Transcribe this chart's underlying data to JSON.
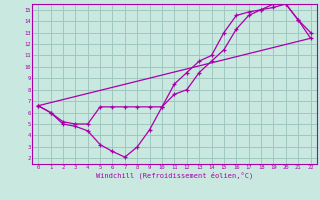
{
  "bg_color": "#c8e8e0",
  "grid_color": "#a0c8c0",
  "line_color": "#aa00aa",
  "marker": "+",
  "xlabel": "Windchill (Refroidissement éolien,°C)",
  "xlim": [
    -0.5,
    22.5
  ],
  "ylim": [
    1.5,
    15.5
  ],
  "xticks": [
    0,
    1,
    2,
    3,
    4,
    5,
    6,
    7,
    8,
    9,
    10,
    11,
    12,
    13,
    14,
    15,
    16,
    17,
    18,
    19,
    20,
    21,
    22
  ],
  "yticks": [
    2,
    3,
    4,
    5,
    6,
    7,
    8,
    9,
    10,
    11,
    12,
    13,
    14,
    15
  ],
  "line1_x": [
    0,
    1,
    2,
    3,
    4,
    5,
    6,
    7,
    8,
    9,
    10,
    11,
    12,
    13,
    14,
    15,
    16,
    17,
    18,
    19,
    20,
    21,
    22
  ],
  "line1_y": [
    6.6,
    6.0,
    5.0,
    4.8,
    4.4,
    3.2,
    2.6,
    2.1,
    3.0,
    4.5,
    6.5,
    7.6,
    8.0,
    9.5,
    10.5,
    11.5,
    13.3,
    14.5,
    15.0,
    15.2,
    15.5,
    14.1,
    13.0
  ],
  "line2_x": [
    0,
    1,
    2,
    3,
    4,
    5,
    6,
    7,
    8,
    9,
    10,
    11,
    12,
    13,
    14,
    15,
    16,
    17,
    18,
    19,
    20,
    21,
    22
  ],
  "line2_y": [
    6.6,
    6.0,
    5.2,
    5.0,
    5.0,
    6.5,
    6.5,
    6.5,
    6.5,
    6.5,
    6.5,
    8.5,
    9.5,
    10.5,
    11.0,
    13.0,
    14.5,
    14.8,
    15.0,
    15.5,
    15.5,
    14.1,
    12.5
  ],
  "line3_x": [
    0,
    22
  ],
  "line3_y": [
    6.6,
    12.5
  ]
}
